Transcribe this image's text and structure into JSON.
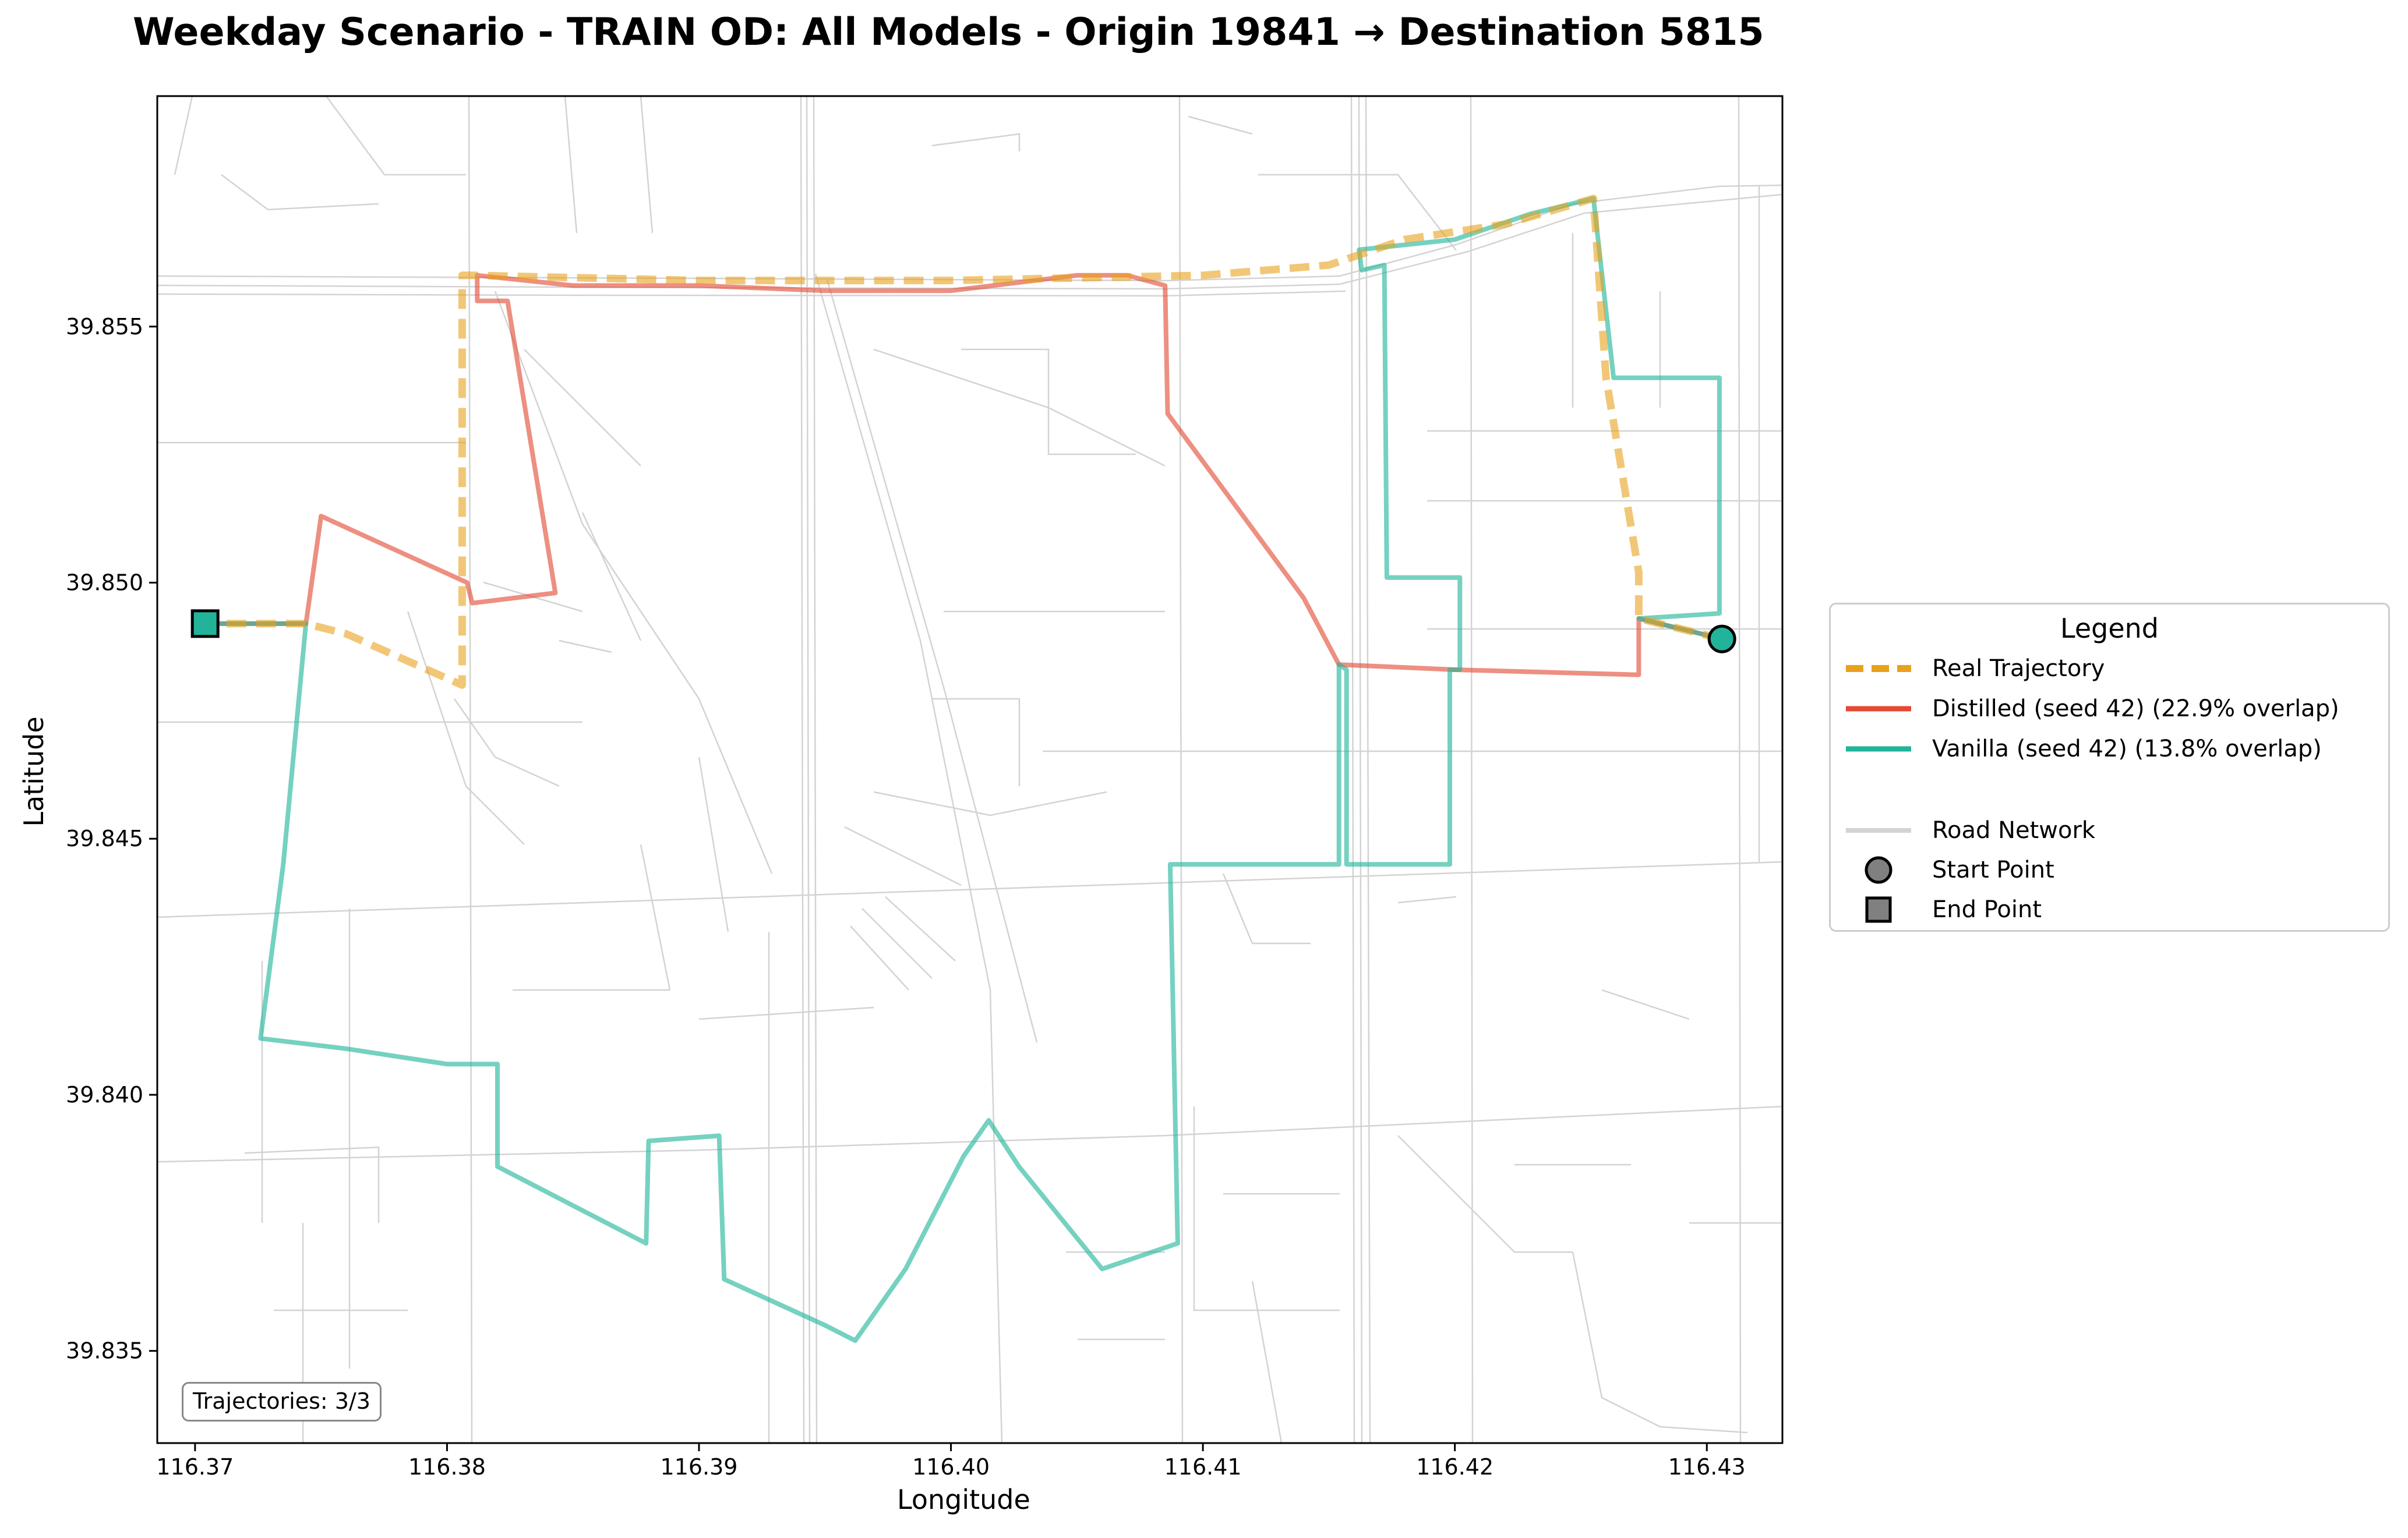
{
  "title": "Weekday Scenario - TRAIN OD: All Models - Origin 19841 → Destination 5815",
  "axes": {
    "xlabel": "Longitude",
    "ylabel": "Latitude",
    "xlim": [
      116.3685,
      116.433
    ],
    "ylim": [
      39.8332,
      39.8595
    ],
    "xticks": [
      116.37,
      116.38,
      116.39,
      116.4,
      116.41,
      116.42,
      116.43
    ],
    "xtick_labels": [
      "116.37",
      "116.38",
      "116.39",
      "116.40",
      "116.41",
      "116.42",
      "116.43"
    ],
    "yticks": [
      39.835,
      39.84,
      39.845,
      39.85,
      39.855
    ],
    "ytick_labels": [
      "39.835",
      "39.840",
      "39.845",
      "39.850",
      "39.855"
    ]
  },
  "counter_text": "Trajectories: 3/3",
  "legend": {
    "title": "Legend",
    "entries": [
      {
        "label": "Real Trajectory",
        "kind": "dashed-line",
        "color": "#e8a11c"
      },
      {
        "label": "Distilled (seed 42) (22.9% overlap)",
        "kind": "line",
        "color": "#e24a33"
      },
      {
        "label": "Vanilla (seed 42) (13.8% overlap)",
        "kind": "line",
        "color": "#21b49a"
      },
      {
        "label": "",
        "kind": "spacer",
        "color": ""
      },
      {
        "label": "Road Network",
        "kind": "road",
        "color": "#d3d3d3"
      },
      {
        "label": "Start Point",
        "kind": "circle",
        "color": "#808080"
      },
      {
        "label": "End Point",
        "kind": "square",
        "color": "#808080"
      }
    ]
  },
  "chart_data": {
    "type": "map-trajectories",
    "start_point": {
      "lon": 116.4306,
      "lat": 39.8489
    },
    "end_point": {
      "lon": 116.3704,
      "lat": 39.8492
    },
    "road_color": "#d3d3d3",
    "series": [
      {
        "name": "Real Trajectory",
        "color": "#e8a11c",
        "style": "dashed",
        "points": [
          [
            116.4306,
            39.8489
          ],
          [
            116.4273,
            39.8493
          ],
          [
            116.4273,
            39.8502
          ],
          [
            116.426,
            39.854
          ],
          [
            116.4255,
            39.8575
          ],
          [
            116.422,
            39.857
          ],
          [
            116.418,
            39.8567
          ],
          [
            116.415,
            39.8562
          ],
          [
            116.41,
            39.856
          ],
          [
            116.4,
            39.8559
          ],
          [
            116.39,
            39.8559
          ],
          [
            116.381,
            39.856
          ],
          [
            116.3806,
            39.856
          ],
          [
            116.3806,
            39.853
          ],
          [
            116.3806,
            39.848
          ],
          [
            116.376,
            39.849
          ],
          [
            116.3744,
            39.8492
          ],
          [
            116.3704,
            39.8492
          ]
        ]
      },
      {
        "name": "Distilled (seed 42) (22.9% overlap)",
        "color": "#e24a33",
        "style": "solid",
        "points": [
          [
            116.4306,
            39.8489
          ],
          [
            116.4273,
            39.8493
          ],
          [
            116.4273,
            39.8482
          ],
          [
            116.42,
            39.8483
          ],
          [
            116.4154,
            39.8484
          ],
          [
            116.414,
            39.8497
          ],
          [
            116.4086,
            39.8533
          ],
          [
            116.4085,
            39.8558
          ],
          [
            116.407,
            39.856
          ],
          [
            116.405,
            39.856
          ],
          [
            116.4,
            39.8557
          ],
          [
            116.395,
            39.8557
          ],
          [
            116.39,
            39.8558
          ],
          [
            116.385,
            39.8558
          ],
          [
            116.3812,
            39.856
          ],
          [
            116.3812,
            39.8555
          ],
          [
            116.3824,
            39.8555
          ],
          [
            116.3843,
            39.8498
          ],
          [
            116.381,
            39.8496
          ],
          [
            116.3808,
            39.85
          ],
          [
            116.375,
            39.8513
          ],
          [
            116.3744,
            39.8492
          ],
          [
            116.3704,
            39.8492
          ]
        ]
      },
      {
        "name": "Vanilla (seed 42) (13.8% overlap)",
        "color": "#21b49a",
        "style": "solid",
        "points": [
          [
            116.4306,
            39.8489
          ],
          [
            116.4273,
            39.8493
          ],
          [
            116.4305,
            39.8494
          ],
          [
            116.4305,
            39.8527
          ],
          [
            116.4305,
            39.854
          ],
          [
            116.4263,
            39.854
          ],
          [
            116.4255,
            39.8575
          ],
          [
            116.423,
            39.8572
          ],
          [
            116.42,
            39.8567
          ],
          [
            116.4162,
            39.8565
          ],
          [
            116.4163,
            39.8561
          ],
          [
            116.4172,
            39.8562
          ],
          [
            116.4173,
            39.8501
          ],
          [
            116.4202,
            39.8501
          ],
          [
            116.4202,
            39.8483
          ],
          [
            116.4198,
            39.8483
          ],
          [
            116.4198,
            39.8445
          ],
          [
            116.4157,
            39.8445
          ],
          [
            116.4157,
            39.8483
          ],
          [
            116.4154,
            39.8484
          ],
          [
            116.4154,
            39.8445
          ],
          [
            116.4087,
            39.8445
          ],
          [
            116.409,
            39.8371
          ],
          [
            116.406,
            39.8366
          ],
          [
            116.4027,
            39.8386
          ],
          [
            116.4015,
            39.8395
          ],
          [
            116.4005,
            39.8388
          ],
          [
            116.3982,
            39.8366
          ],
          [
            116.3962,
            39.8352
          ],
          [
            116.395,
            39.8355
          ],
          [
            116.391,
            39.8364
          ],
          [
            116.3908,
            39.8392
          ],
          [
            116.388,
            39.8391
          ],
          [
            116.3879,
            39.8371
          ],
          [
            116.382,
            39.8386
          ],
          [
            116.382,
            39.84
          ],
          [
            116.382,
            39.8406
          ],
          [
            116.38,
            39.8406
          ],
          [
            116.376,
            39.8409
          ],
          [
            116.3726,
            39.8411
          ],
          [
            116.3735,
            39.8445
          ],
          [
            116.3744,
            39.8492
          ],
          [
            116.3704,
            39.8492
          ]
        ]
      }
    ]
  }
}
